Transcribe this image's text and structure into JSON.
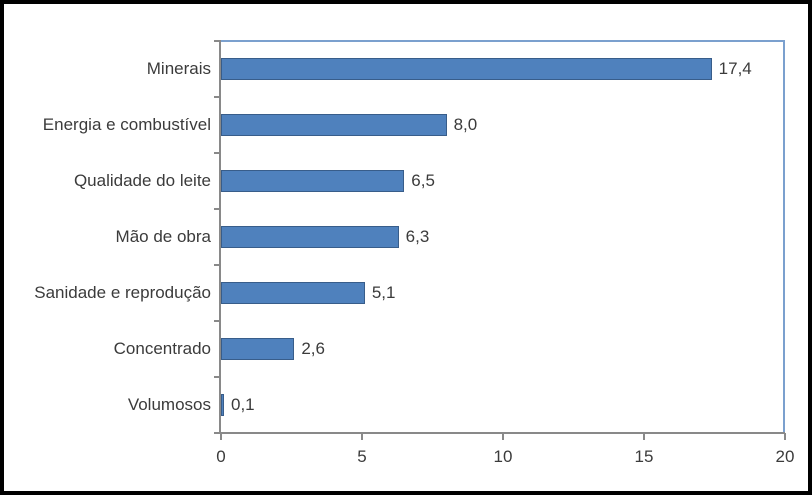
{
  "chart_data": {
    "type": "bar",
    "orientation": "horizontal",
    "title": "",
    "xlabel": "",
    "ylabel": "",
    "categories": [
      "Minerais",
      "Energia e combustível",
      "Qualidade do leite",
      "Mão de obra",
      "Sanidade e reprodução",
      "Concentrado",
      "Volumosos"
    ],
    "values": [
      17.4,
      8.0,
      6.5,
      6.3,
      5.1,
      2.6,
      0.1
    ],
    "data_labels": [
      "17,4",
      "8,0",
      "6,5",
      "6,3",
      "5,1",
      "2,6",
      "0,1"
    ],
    "x_ticks": [
      0,
      5,
      10,
      15,
      20
    ],
    "x_tick_labels": [
      "0",
      "5",
      "10",
      "15",
      "20"
    ],
    "xlim": [
      0,
      20
    ],
    "grid": false,
    "legend": "none",
    "colors": {
      "bar_fill": "#4F81BD",
      "bar_border": "#385D8A",
      "axis": "#898989",
      "plot_border": "#7BA0CE",
      "text": "#3B3B3B",
      "frame_border": "#000000",
      "background": "#FFFFFF"
    }
  }
}
